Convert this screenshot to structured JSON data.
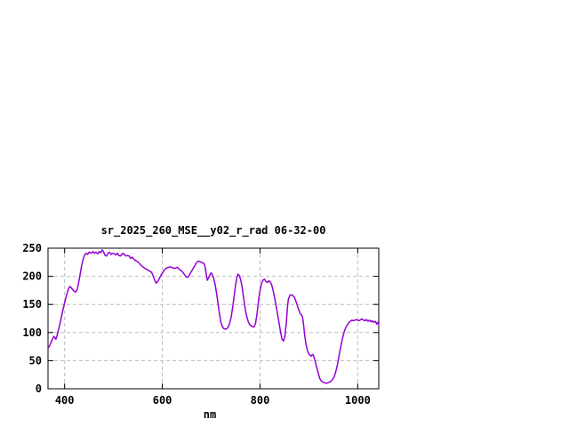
{
  "window": {
    "background_color": "#ffffff"
  },
  "chart_data": {
    "type": "line",
    "title": "sr_2025_260_MSE__y02_r_rad 06-32-00",
    "xlabel": "nm",
    "ylabel": "",
    "xlim": [
      366,
      1043
    ],
    "ylim": [
      0,
      250
    ],
    "x_ticks": [
      400,
      600,
      800,
      1000
    ],
    "y_ticks": [
      0,
      50,
      100,
      150,
      200,
      250
    ],
    "grid": "dashed",
    "legend_position": "none",
    "line_color": "#9400d3",
    "grid_color": "#bbbbbb",
    "border_color": "#000000",
    "series": [
      {
        "points": [
          [
            366,
            72
          ],
          [
            369,
            76
          ],
          [
            372,
            82
          ],
          [
            375,
            88
          ],
          [
            378,
            93
          ],
          [
            380,
            91
          ],
          [
            382,
            88
          ],
          [
            384,
            93
          ],
          [
            386,
            100
          ],
          [
            389,
            110
          ],
          [
            392,
            122
          ],
          [
            395,
            134
          ],
          [
            398,
            146
          ],
          [
            400,
            153
          ],
          [
            403,
            163
          ],
          [
            406,
            173
          ],
          [
            409,
            180
          ],
          [
            411,
            182
          ],
          [
            414,
            179
          ],
          [
            417,
            176
          ],
          [
            420,
            173
          ],
          [
            423,
            172
          ],
          [
            426,
            177
          ],
          [
            429,
            190
          ],
          [
            432,
            205
          ],
          [
            435,
            220
          ],
          [
            438,
            231
          ],
          [
            441,
            238
          ],
          [
            444,
            241
          ],
          [
            447,
            239
          ],
          [
            450,
            243
          ],
          [
            454,
            241
          ],
          [
            458,
            244
          ],
          [
            461,
            241
          ],
          [
            464,
            243
          ],
          [
            468,
            240
          ],
          [
            471,
            244
          ],
          [
            474,
            242
          ],
          [
            477,
            247
          ],
          [
            480,
            243
          ],
          [
            483,
            237
          ],
          [
            486,
            236
          ],
          [
            489,
            241
          ],
          [
            492,
            243
          ],
          [
            495,
            239
          ],
          [
            498,
            241
          ],
          [
            502,
            240
          ],
          [
            505,
            238
          ],
          [
            508,
            241
          ],
          [
            511,
            237
          ],
          [
            514,
            236
          ],
          [
            517,
            239
          ],
          [
            520,
            241
          ],
          [
            523,
            238
          ],
          [
            526,
            236
          ],
          [
            529,
            237
          ],
          [
            532,
            236
          ],
          [
            535,
            232
          ],
          [
            538,
            234
          ],
          [
            541,
            231
          ],
          [
            544,
            229
          ],
          [
            547,
            227
          ],
          [
            551,
            225
          ],
          [
            554,
            222
          ],
          [
            557,
            219
          ],
          [
            560,
            217
          ],
          [
            563,
            215
          ],
          [
            566,
            213
          ],
          [
            569,
            212
          ],
          [
            572,
            210
          ],
          [
            575,
            209
          ],
          [
            578,
            207
          ],
          [
            581,
            201
          ],
          [
            584,
            194
          ],
          [
            587,
            188
          ],
          [
            589,
            189
          ],
          [
            592,
            193
          ],
          [
            595,
            198
          ],
          [
            598,
            203
          ],
          [
            601,
            207
          ],
          [
            604,
            211
          ],
          [
            607,
            214
          ],
          [
            610,
            215
          ],
          [
            613,
            216
          ],
          [
            616,
            217
          ],
          [
            619,
            216
          ],
          [
            622,
            215
          ],
          [
            625,
            214
          ],
          [
            628,
            215
          ],
          [
            631,
            216
          ],
          [
            634,
            213
          ],
          [
            637,
            211
          ],
          [
            640,
            209
          ],
          [
            643,
            206
          ],
          [
            646,
            202
          ],
          [
            649,
            199
          ],
          [
            651,
            198
          ],
          [
            654,
            200
          ],
          [
            657,
            205
          ],
          [
            660,
            209
          ],
          [
            663,
            214
          ],
          [
            666,
            218
          ],
          [
            669,
            223
          ],
          [
            672,
            226
          ],
          [
            674,
            227
          ],
          [
            677,
            226
          ],
          [
            680,
            225
          ],
          [
            683,
            224
          ],
          [
            686,
            222
          ],
          [
            688,
            215
          ],
          [
            690,
            204
          ],
          [
            692,
            193
          ],
          [
            694,
            196
          ],
          [
            697,
            202
          ],
          [
            700,
            206
          ],
          [
            702,
            204
          ],
          [
            705,
            197
          ],
          [
            708,
            186
          ],
          [
            711,
            170
          ],
          [
            714,
            152
          ],
          [
            717,
            133
          ],
          [
            720,
            118
          ],
          [
            723,
            110
          ],
          [
            726,
            107
          ],
          [
            729,
            106
          ],
          [
            732,
            107
          ],
          [
            735,
            110
          ],
          [
            738,
            117
          ],
          [
            741,
            128
          ],
          [
            744,
            145
          ],
          [
            747,
            165
          ],
          [
            750,
            185
          ],
          [
            753,
            199
          ],
          [
            755,
            204
          ],
          [
            758,
            201
          ],
          [
            761,
            192
          ],
          [
            764,
            177
          ],
          [
            767,
            158
          ],
          [
            770,
            140
          ],
          [
            773,
            128
          ],
          [
            776,
            119
          ],
          [
            779,
            114
          ],
          [
            782,
            112
          ],
          [
            785,
            110
          ],
          [
            788,
            110
          ],
          [
            791,
            117
          ],
          [
            794,
            135
          ],
          [
            797,
            157
          ],
          [
            800,
            175
          ],
          [
            803,
            187
          ],
          [
            806,
            193
          ],
          [
            809,
            195
          ],
          [
            812,
            191
          ],
          [
            815,
            189
          ],
          [
            818,
            192
          ],
          [
            821,
            190
          ],
          [
            824,
            184
          ],
          [
            827,
            174
          ],
          [
            830,
            161
          ],
          [
            833,
            147
          ],
          [
            836,
            132
          ],
          [
            839,
            117
          ],
          [
            842,
            101
          ],
          [
            845,
            88
          ],
          [
            848,
            85
          ],
          [
            851,
            94
          ],
          [
            854,
            118
          ],
          [
            856,
            143
          ],
          [
            858,
            159
          ],
          [
            861,
            166
          ],
          [
            864,
            167
          ],
          [
            867,
            166
          ],
          [
            870,
            163
          ],
          [
            873,
            157
          ],
          [
            876,
            149
          ],
          [
            879,
            141
          ],
          [
            882,
            134
          ],
          [
            885,
            131
          ],
          [
            887,
            127
          ],
          [
            889,
            115
          ],
          [
            891,
            98
          ],
          [
            894,
            80
          ],
          [
            897,
            68
          ],
          [
            900,
            62
          ],
          [
            903,
            59
          ],
          [
            905,
            58
          ],
          [
            907,
            61
          ],
          [
            909,
            60
          ],
          [
            911,
            55
          ],
          [
            913,
            48
          ],
          [
            916,
            38
          ],
          [
            919,
            28
          ],
          [
            922,
            19
          ],
          [
            925,
            14
          ],
          [
            928,
            12
          ],
          [
            931,
            11
          ],
          [
            934,
            10
          ],
          [
            937,
            10
          ],
          [
            940,
            11
          ],
          [
            943,
            12
          ],
          [
            946,
            14
          ],
          [
            949,
            17
          ],
          [
            952,
            22
          ],
          [
            955,
            30
          ],
          [
            958,
            41
          ],
          [
            961,
            55
          ],
          [
            964,
            69
          ],
          [
            967,
            82
          ],
          [
            970,
            94
          ],
          [
            973,
            103
          ],
          [
            976,
            110
          ],
          [
            979,
            114
          ],
          [
            982,
            118
          ],
          [
            985,
            120
          ],
          [
            988,
            122
          ],
          [
            991,
            121
          ],
          [
            994,
            122
          ],
          [
            997,
            123
          ],
          [
            1000,
            122
          ],
          [
            1003,
            121
          ],
          [
            1006,
            123
          ],
          [
            1009,
            124
          ],
          [
            1012,
            122
          ],
          [
            1015,
            121
          ],
          [
            1018,
            123
          ],
          [
            1021,
            120
          ],
          [
            1024,
            122
          ],
          [
            1027,
            119
          ],
          [
            1030,
            121
          ],
          [
            1033,
            118
          ],
          [
            1036,
            120
          ],
          [
            1039,
            115
          ],
          [
            1041,
            118
          ],
          [
            1043,
            114
          ]
        ]
      }
    ]
  }
}
